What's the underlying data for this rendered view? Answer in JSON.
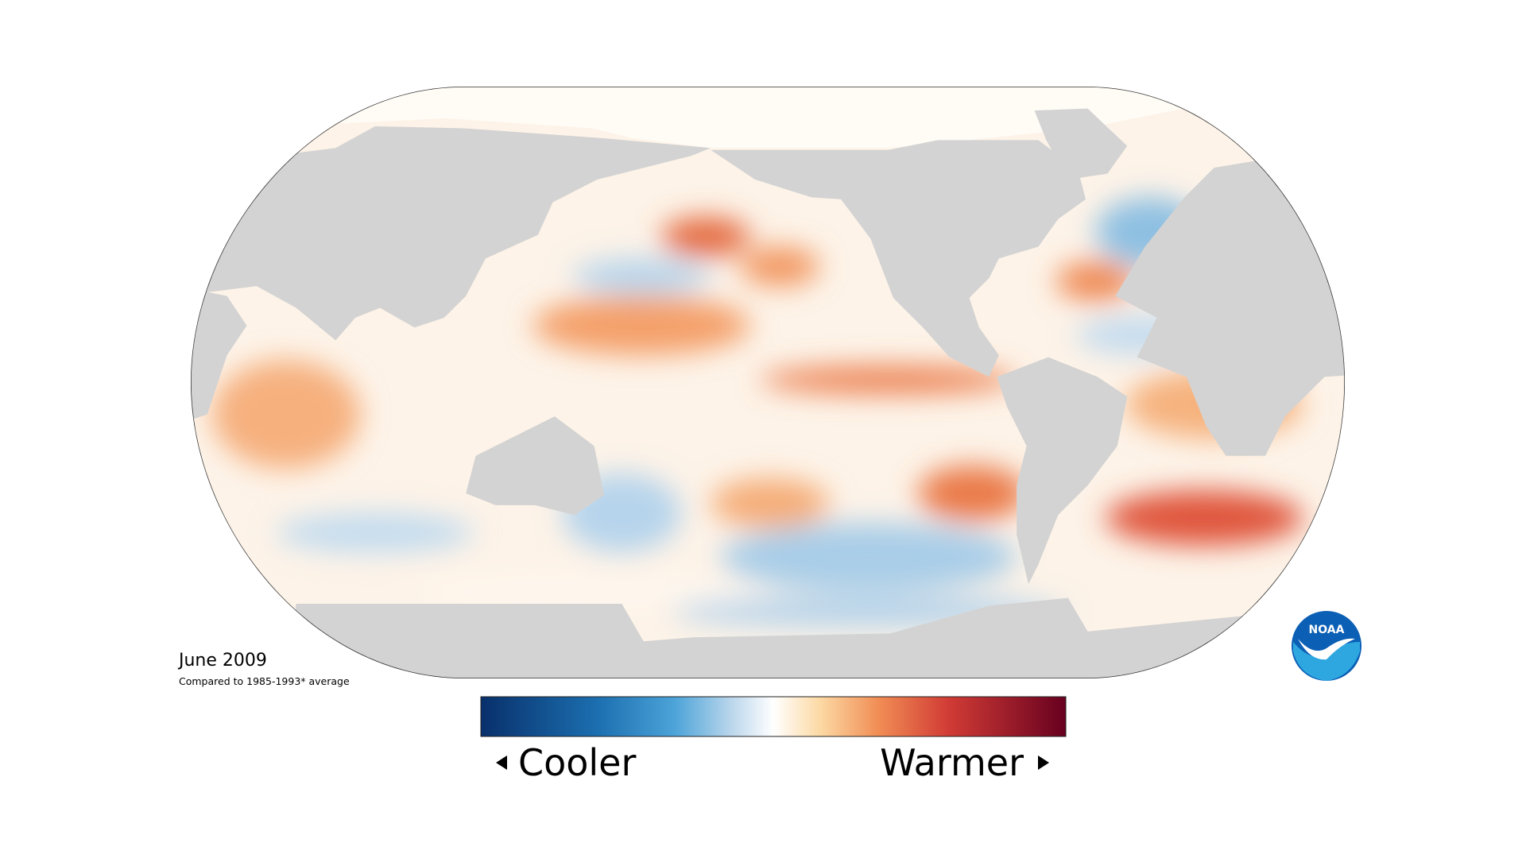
{
  "title": "June 2009",
  "subtitle": "Compared to 1985-1993* average",
  "legend": {
    "low": "Cooler",
    "high": "Warmer"
  },
  "logo": "NOAA"
}
